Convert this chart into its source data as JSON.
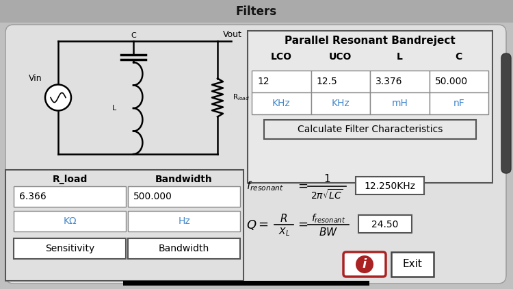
{
  "title": "Filters",
  "subtitle": "Parallel Resonant Bandreject",
  "bg_color": "#c0c0c0",
  "panel_bg": "#e8e8e8",
  "white": "#ffffff",
  "black": "#000000",
  "blue_text": "#4488cc",
  "red": "#aa2222",
  "table_headers": [
    "LCO",
    "UCO",
    "L",
    "C"
  ],
  "table_values": [
    "12",
    "12.5",
    "3.376",
    "50.000"
  ],
  "table_units": [
    "KHz",
    "KHz",
    "mH",
    "nF"
  ],
  "calc_button": "Calculate Filter Characteristics",
  "f_result": "12.250KHz",
  "q_result": "24.50",
  "rload_label": "R_load",
  "bandwidth_label": "Bandwidth",
  "rload_value": "6.366",
  "bandwidth_value": "500.000",
  "rload_unit": "KΩ",
  "bandwidth_unit": "Hz",
  "sensitivity_btn": "Sensitivity",
  "bandwidth_btn": "Bandwidth",
  "vin_label": "Vin",
  "vout_label": "Vout",
  "c_label": "C",
  "l_label": "L",
  "rload_circuit": "R_load"
}
